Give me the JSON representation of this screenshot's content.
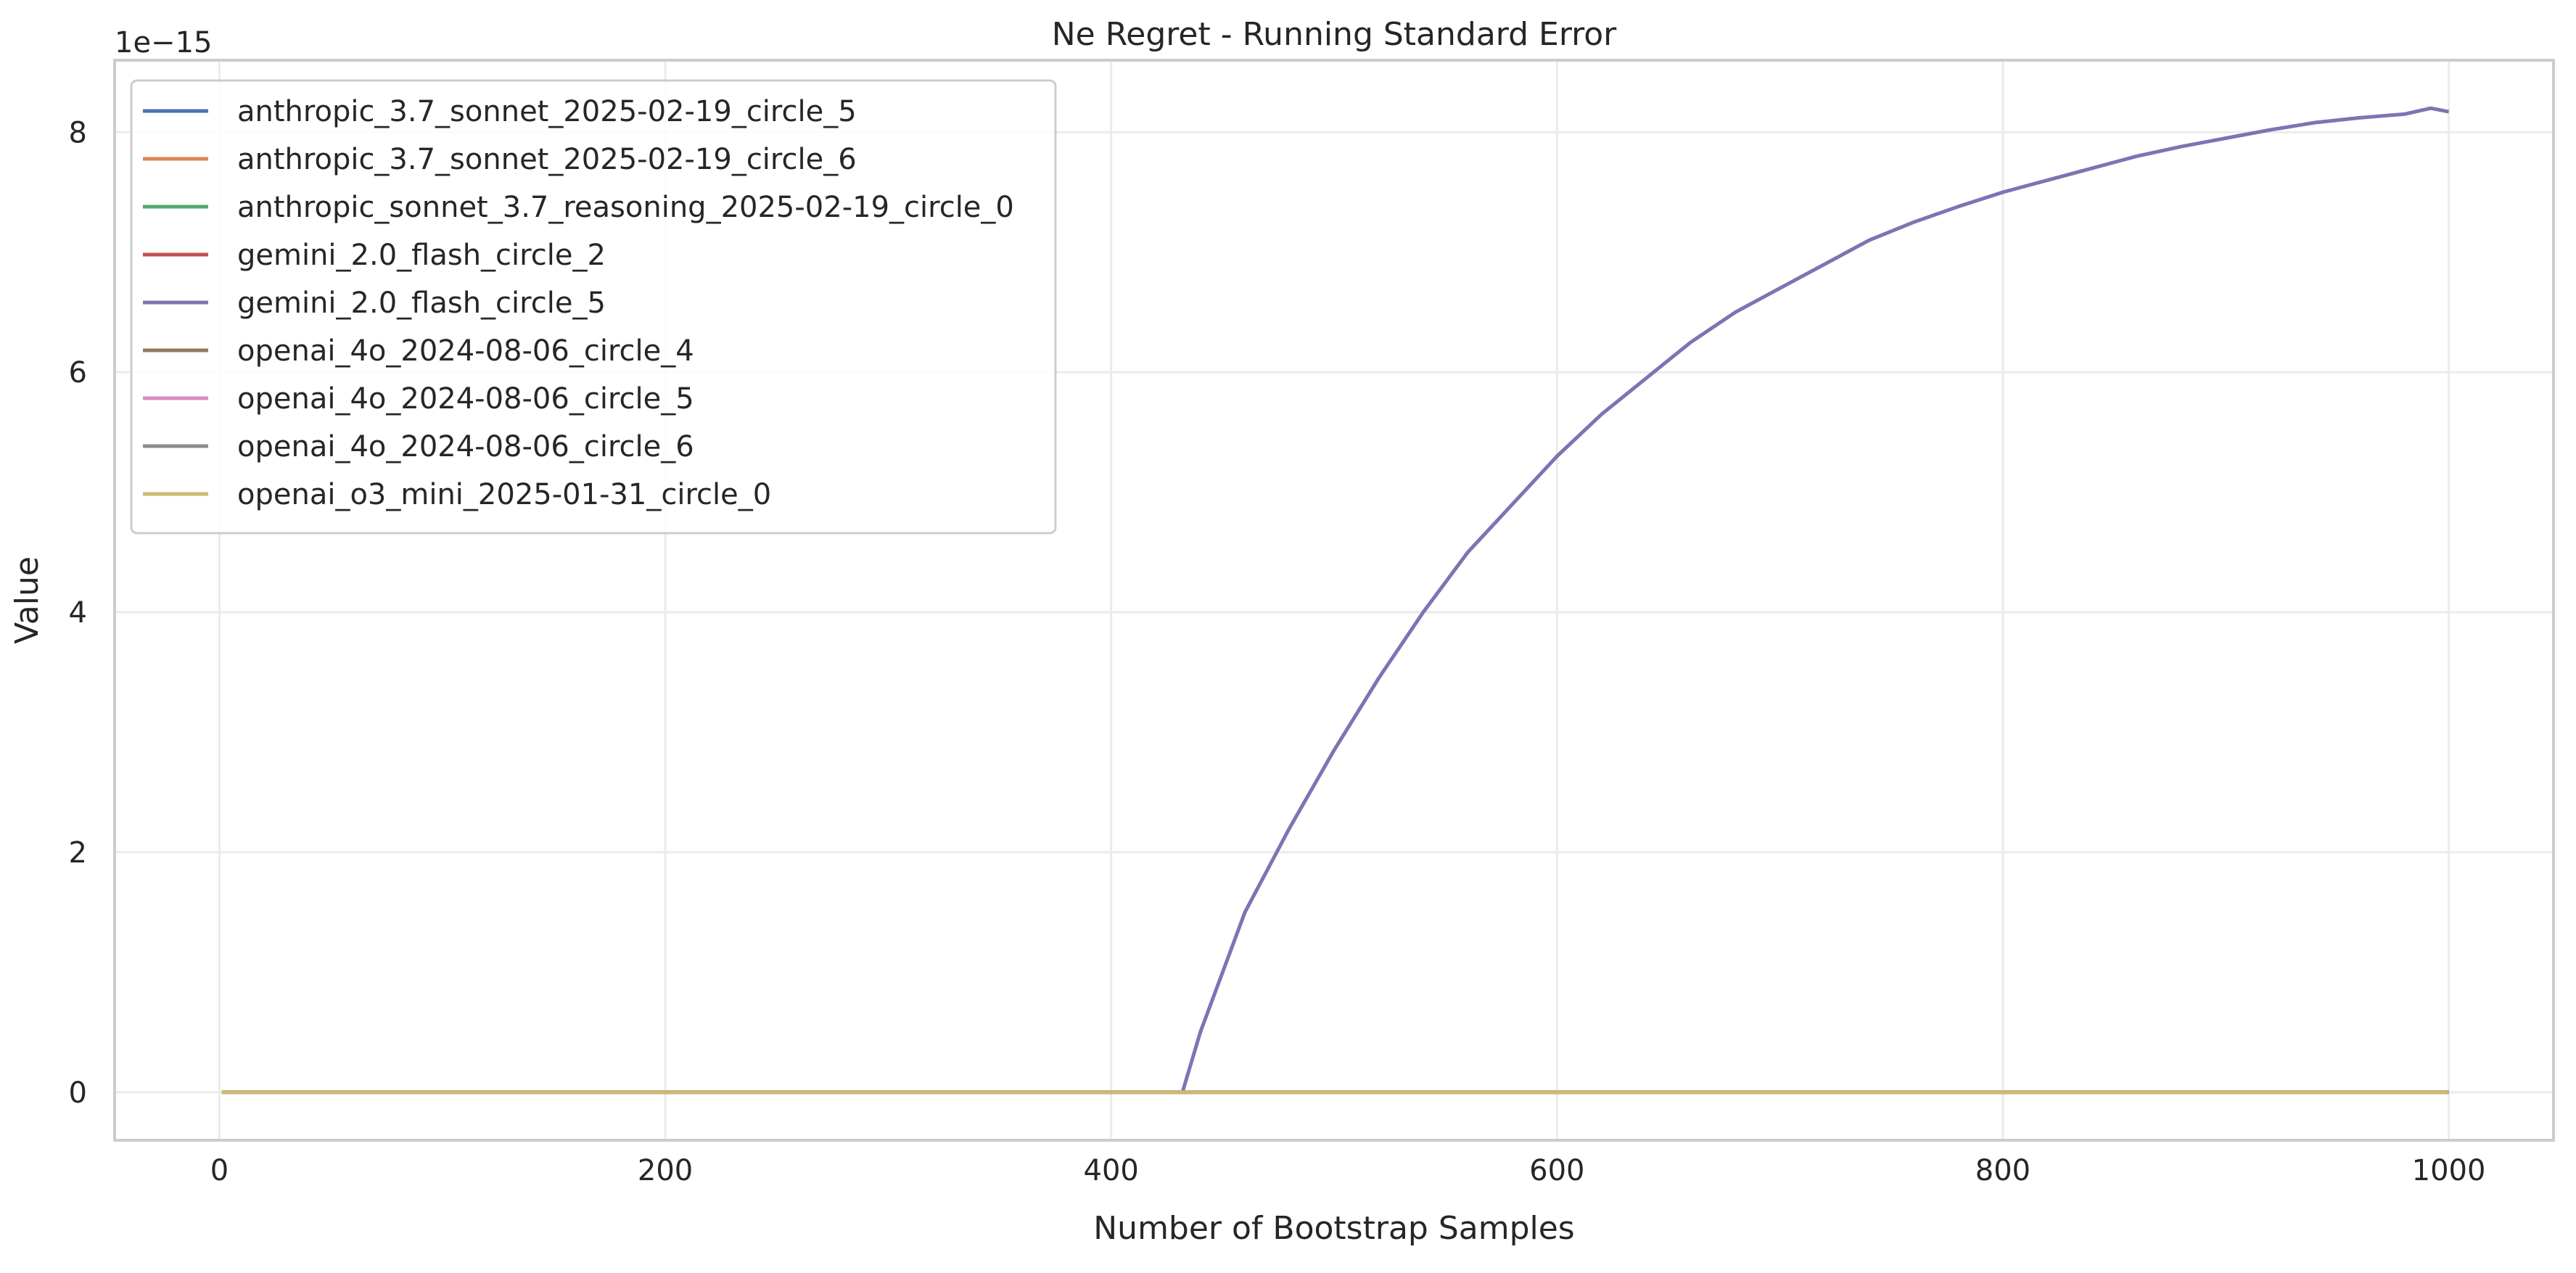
{
  "chart_data": {
    "type": "line",
    "title": "Ne Regret - Running Standard Error",
    "xlabel": "Number of Bootstrap Samples",
    "ylabel": "Value",
    "y_scale_label": "1e−15",
    "y_scale_multiplier": 1e-15,
    "xlim": [
      -47,
      1047
    ],
    "ylim": [
      -4e-16,
      8.6e-15
    ],
    "x_ticks": [
      0,
      200,
      400,
      600,
      800,
      1000
    ],
    "x_tick_labels": [
      "0",
      "200",
      "400",
      "600",
      "800",
      "1000"
    ],
    "y_ticks": [
      0,
      2e-15,
      4e-15,
      6e-15,
      8e-15
    ],
    "y_tick_labels": [
      "0",
      "2",
      "4",
      "6",
      "8"
    ],
    "grid": true,
    "legend_position": "top-left",
    "series": [
      {
        "name": "anthropic_3.7_sonnet_2025-02-19_circle_5",
        "color": "#4c72b0",
        "x": [
          1,
          1000
        ],
        "y": [
          0,
          0
        ]
      },
      {
        "name": "anthropic_3.7_sonnet_2025-02-19_circle_6",
        "color": "#dd8452",
        "x": [
          1,
          1000
        ],
        "y": [
          0,
          0
        ]
      },
      {
        "name": "anthropic_sonnet_3.7_reasoning_2025-02-19_circle_0",
        "color": "#55a868",
        "x": [
          1,
          1000
        ],
        "y": [
          0,
          0
        ]
      },
      {
        "name": "gemini_2.0_flash_circle_2",
        "color": "#c44e52",
        "x": [
          1,
          1000
        ],
        "y": [
          0,
          0
        ]
      },
      {
        "name": "gemini_2.0_flash_circle_5",
        "color": "#8172b3",
        "x": [
          1,
          432,
          440,
          460,
          480,
          500,
          520,
          540,
          560,
          580,
          600,
          620,
          640,
          660,
          680,
          700,
          720,
          740,
          760,
          780,
          800,
          820,
          840,
          860,
          880,
          900,
          920,
          940,
          960,
          980,
          992,
          1000
        ],
        "y": [
          0,
          0,
          5e-16,
          1.5e-15,
          2.2e-15,
          2.85e-15,
          3.45e-15,
          4e-15,
          4.5e-15,
          4.9e-15,
          5.3e-15,
          5.65e-15,
          5.95e-15,
          6.25e-15,
          6.5e-15,
          6.7e-15,
          6.9e-15,
          7.1e-15,
          7.25e-15,
          7.38e-15,
          7.5e-15,
          7.6e-15,
          7.7e-15,
          7.8e-15,
          7.88e-15,
          7.95e-15,
          8.02e-15,
          8.08e-15,
          8.12e-15,
          8.15e-15,
          8.2e-15,
          8.17e-15
        ]
      },
      {
        "name": "openai_4o_2024-08-06_circle_4",
        "color": "#937860",
        "x": [
          1,
          1000
        ],
        "y": [
          0,
          0
        ]
      },
      {
        "name": "openai_4o_2024-08-06_circle_5",
        "color": "#da8bc3",
        "x": [
          1,
          1000
        ],
        "y": [
          0,
          0
        ]
      },
      {
        "name": "openai_4o_2024-08-06_circle_6",
        "color": "#8c8c8c",
        "x": [
          1,
          1000
        ],
        "y": [
          0,
          0
        ]
      },
      {
        "name": "openai_o3_mini_2025-01-31_circle_0",
        "color": "#ccb974",
        "x": [
          1,
          1000
        ],
        "y": [
          0,
          0
        ]
      }
    ]
  }
}
